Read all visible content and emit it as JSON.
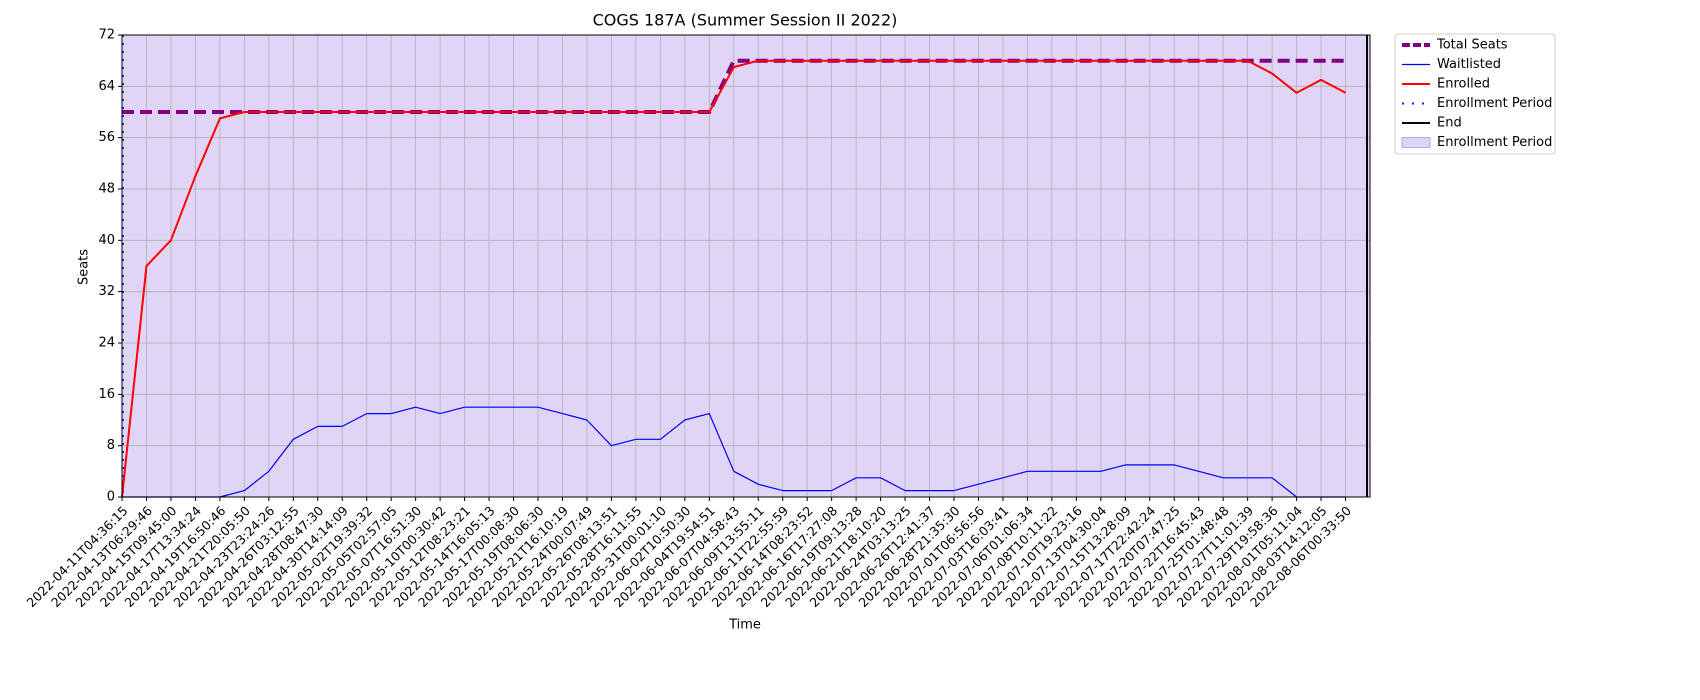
{
  "chart_data": {
    "type": "line",
    "title": "COGS 187A (Summer Session II 2022)",
    "x_label": "Time",
    "y_label": "Seats",
    "categories": [
      "2022-04-11T04:36:15",
      "2022-04-13T06:29:46",
      "2022-04-15T09:45:00",
      "2022-04-17T13:34:24",
      "2022-04-19T16:50:46",
      "2022-04-21T20:05:50",
      "2022-04-23T23:24:26",
      "2022-04-26T03:12:55",
      "2022-04-28T08:47:30",
      "2022-04-30T14:14:09",
      "2022-05-02T19:39:32",
      "2022-05-05T02:57:05",
      "2022-05-07T16:51:30",
      "2022-05-10T00:30:42",
      "2022-05-12T08:23:21",
      "2022-05-14T16:05:13",
      "2022-05-17T00:08:30",
      "2022-05-19T08:06:30",
      "2022-05-21T16:10:19",
      "2022-05-24T00:07:49",
      "2022-05-26T08:13:51",
      "2022-05-28T16:11:55",
      "2022-05-31T00:01:10",
      "2022-06-02T10:50:30",
      "2022-06-04T19:54:51",
      "2022-06-07T04:58:43",
      "2022-06-09T13:55:11",
      "2022-06-11T22:55:59",
      "2022-06-14T08:23:52",
      "2022-06-16T17:27:08",
      "2022-06-19T09:13:28",
      "2022-06-21T18:10:20",
      "2022-06-24T03:13:25",
      "2022-06-26T12:41:37",
      "2022-06-28T21:35:30",
      "2022-07-01T06:56:56",
      "2022-07-03T16:03:41",
      "2022-07-06T01:06:34",
      "2022-07-08T10:11:22",
      "2022-07-10T19:23:16",
      "2022-07-13T04:30:04",
      "2022-07-15T13:28:09",
      "2022-07-17T22:42:24",
      "2022-07-20T07:47:25",
      "2022-07-22T16:45:43",
      "2022-07-25T01:48:48",
      "2022-07-27T11:01:39",
      "2022-07-29T19:58:36",
      "2022-08-01T05:11:04",
      "2022-08-03T14:12:05",
      "2022-08-06T00:33:50"
    ],
    "series": [
      {
        "name": "Total Seats",
        "color": "#800080",
        "width": 4,
        "dash": "12 6",
        "values": [
          60,
          60,
          60,
          60,
          60,
          60,
          60,
          60,
          60,
          60,
          60,
          60,
          60,
          60,
          60,
          60,
          60,
          60,
          60,
          60,
          60,
          60,
          60,
          60,
          60,
          68,
          68,
          68,
          68,
          68,
          68,
          68,
          68,
          68,
          68,
          68,
          68,
          68,
          68,
          68,
          68,
          68,
          68,
          68,
          68,
          68,
          68,
          68,
          68,
          68,
          68
        ]
      },
      {
        "name": "Waitlisted",
        "color": "#0000ff",
        "width": 1.2,
        "values": [
          0,
          0,
          0,
          0,
          0,
          1,
          4,
          9,
          11,
          11,
          13,
          13,
          14,
          13,
          14,
          14,
          14,
          14,
          13,
          12,
          8,
          9,
          9,
          12,
          13,
          4,
          2,
          1,
          1,
          1,
          3,
          3,
          1,
          1,
          1,
          2,
          3,
          4,
          4,
          4,
          4,
          5,
          5,
          5,
          4,
          3,
          3,
          3,
          0,
          0,
          0
        ]
      },
      {
        "name": "Enrolled",
        "color": "#ff0000",
        "width": 2,
        "values": [
          0,
          36,
          40,
          50,
          59,
          60,
          60,
          60,
          60,
          60,
          60,
          60,
          60,
          60,
          60,
          60,
          60,
          60,
          60,
          60,
          60,
          60,
          60,
          60,
          60,
          67,
          68,
          68,
          68,
          68,
          68,
          68,
          68,
          68,
          68,
          68,
          68,
          68,
          68,
          68,
          68,
          68,
          68,
          68,
          68,
          68,
          68,
          66,
          63,
          65,
          63
        ]
      }
    ],
    "markers": [
      {
        "name": "Enrollment Period",
        "color": "#1a1aff",
        "kind": "dotted-line"
      },
      {
        "name": "End",
        "color": "#000000",
        "kind": "line"
      },
      {
        "name": "Enrollment Period",
        "color": "#e1d5f7",
        "kind": "span"
      }
    ],
    "ylim": [
      0,
      72
    ],
    "yticks": [
      0,
      8,
      16,
      24,
      32,
      40,
      48,
      56,
      64,
      72
    ],
    "grid": true,
    "legend": "outside-right"
  }
}
